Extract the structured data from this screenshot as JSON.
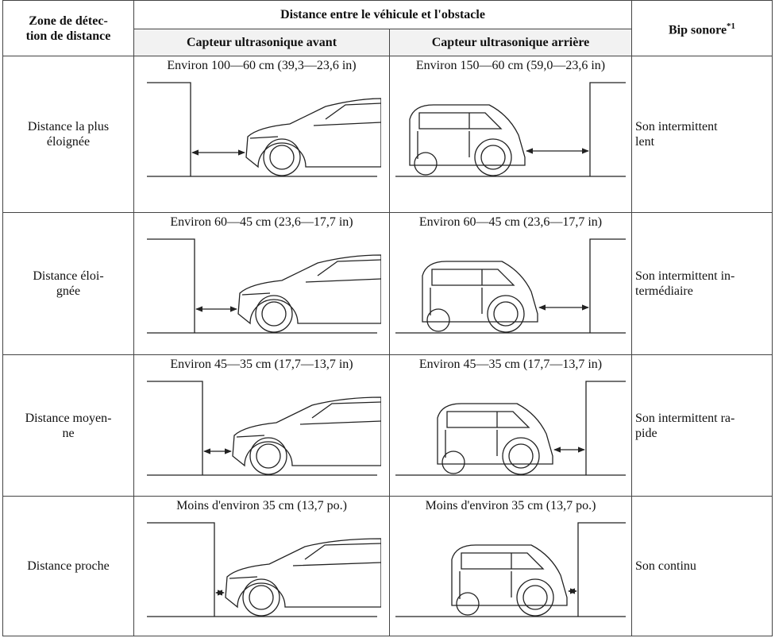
{
  "table": {
    "header": {
      "zone": "Zone de détec-\ntion de distance",
      "distance": "Distance entre le véhicule et l'obstacle",
      "front": "Capteur ultrasonique avant",
      "rear": "Capteur ultrasonique arrière",
      "beep": "Bip sonore",
      "beep_note": "*1"
    },
    "rows": [
      {
        "zone": "Distance la plus\néloignée",
        "front": "Environ 100—60 cm (39,3—23,6 in)",
        "rear": "Environ 150—60 cm (59,0—23,6 in)",
        "beep": "Son intermittent\nlent"
      },
      {
        "zone": "Distance éloi-\ngnée",
        "front": "Environ 60—45 cm (23,6—17,7 in)",
        "rear": "Environ 60—45 cm (23,6—17,7 in)",
        "beep": "Son intermittent in-\ntermédiaire"
      },
      {
        "zone": "Distance moyen-\nne",
        "front": "Environ 45—35 cm (17,7—13,7 in)",
        "rear": "Environ 45—35 cm (17,7—13,7 in)",
        "beep": "Son intermittent ra-\npide"
      },
      {
        "zone": "Distance proche",
        "front": "Moins d'environ 35 cm (13,7 po.)",
        "rear": "Moins d'environ 35 cm (13,7 po.)",
        "beep": "Son continu"
      }
    ]
  }
}
